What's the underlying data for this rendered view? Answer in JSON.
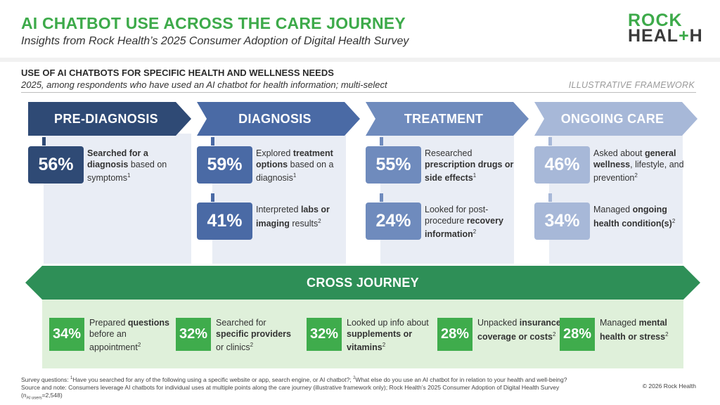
{
  "header": {
    "title": "AI CHATBOT USE ACROSS THE CARE JOURNEY",
    "subtitle": "Insights from Rock Health’s 2025 Consumer Adoption of Digital Health Survey",
    "logo_line1": "ROCK",
    "logo_line2_a": "HEAL",
    "logo_line2_plus": "+",
    "logo_line2_b": "H"
  },
  "section": {
    "title": "USE OF AI CHATBOTS FOR SPECIFIC HEALTH AND WELLNESS NEEDS",
    "subtitle": "2025, among respondents who have used an AI chatbot for health information; multi-select",
    "framework_label": "ILLUSTRATIVE FRAMEWORK"
  },
  "colors": {
    "pre_diagnosis": "#2f4a75",
    "diagnosis": "#4a6aa5",
    "treatment": "#6f8bbd",
    "ongoing_care": "#a7b8d8",
    "column_bg": "#e9edf5",
    "cross_journey": "#2e8f57",
    "cross_bg": "#dff0da",
    "cross_pct": "#3fac4c",
    "title_green": "#3daa4a"
  },
  "stages": [
    {
      "label": "PRE-DIAGNOSIS",
      "stats": [
        {
          "pct": "56%",
          "pre": "",
          "bold": "Searched for a diagnosis",
          "post": " based on symptoms",
          "sup": "1"
        }
      ]
    },
    {
      "label": "DIAGNOSIS",
      "stats": [
        {
          "pct": "59%",
          "pre": "Explored ",
          "bold": "treatment options",
          "post": " based on a diagnosis",
          "sup": "1"
        },
        {
          "pct": "41%",
          "pre": "Interpreted ",
          "bold": "labs or imaging",
          "post": " results",
          "sup": "2"
        }
      ]
    },
    {
      "label": "TREATMENT",
      "stats": [
        {
          "pct": "55%",
          "pre": "Researched ",
          "bold": "prescription drugs or side effects",
          "post": "",
          "sup": "1"
        },
        {
          "pct": "24%",
          "pre": "Looked for post-procedure ",
          "bold": "recovery information",
          "post": "",
          "sup": "2"
        }
      ]
    },
    {
      "label": "ONGOING CARE",
      "stats": [
        {
          "pct": "46%",
          "pre": "Asked about ",
          "bold": "general wellness",
          "post": ", lifestyle, and prevention",
          "sup": "2"
        },
        {
          "pct": "34%",
          "pre": "Managed ",
          "bold": "ongoing health condition(s)",
          "post": "",
          "sup": "2"
        }
      ]
    }
  ],
  "cross_journey": {
    "label": "CROSS JOURNEY",
    "stats": [
      {
        "pct": "34%",
        "pre": "Prepared ",
        "bold": "questions",
        "post": " before an appointment",
        "sup": "2"
      },
      {
        "pct": "32%",
        "pre": "Searched for ",
        "bold": "specific providers",
        "post": " or clinics",
        "sup": "2"
      },
      {
        "pct": "32%",
        "pre": "Looked up info about ",
        "bold": "supplements or vitamins",
        "post": "",
        "sup": "2"
      },
      {
        "pct": "28%",
        "pre": "Unpacked ",
        "bold": "insurance coverage or costs",
        "post": "",
        "sup": "2"
      },
      {
        "pct": "28%",
        "pre": "Managed ",
        "bold": "mental health or stress",
        "post": "",
        "sup": "2"
      }
    ]
  },
  "footer": {
    "line1_a": "Survey questions: ",
    "line1_sup1": "1",
    "line1_b": "Have you searched for any of the following using a specific website or app, search engine, or AI chatbot?; ",
    "line1_sup2": "2",
    "line1_c": "What else do you use an AI chatbot for in relation to your health and well-being?",
    "line2": "Source and note: Consumers leverage AI chatbots for individual uses at multiple points along the care journey (illustrative framework only); Rock Health’s 2025 Consumer Adoption of Digital Health Survey",
    "line3_a": "(n",
    "line3_sub": "AI users",
    "line3_b": "=2,548)",
    "copyright": "© 2026 Rock Health"
  }
}
